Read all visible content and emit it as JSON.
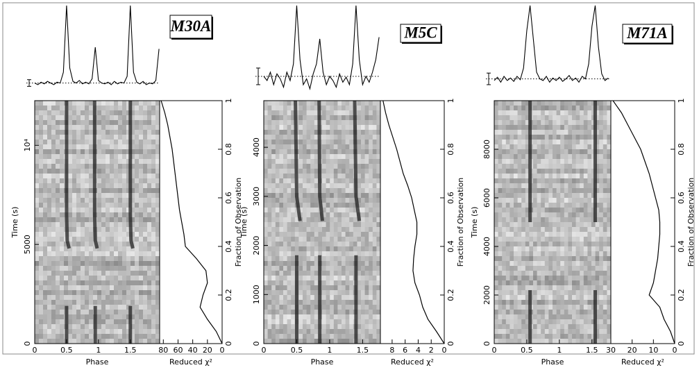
{
  "chart_data": [
    {
      "type": "waterfall",
      "title": "M30A",
      "xlabel": "Phase",
      "ylabel": "Time (s)",
      "xlim": [
        0,
        1.96
      ],
      "xticks": [
        0,
        0.5,
        1,
        1.5
      ],
      "ylim": [
        0,
        12250
      ],
      "yticks": [
        0,
        5000,
        {
          "value": 10000,
          "label": "10⁴"
        }
      ],
      "profile": {
        "x": [
          0,
          0.05,
          0.1,
          0.15,
          0.2,
          0.25,
          0.3,
          0.35,
          0.4,
          0.45,
          0.5,
          0.55,
          0.6,
          0.65,
          0.7,
          0.75,
          0.8,
          0.85,
          0.9,
          0.95,
          1,
          1.05,
          1.1,
          1.15,
          1.2,
          1.25,
          1.3,
          1.35,
          1.4,
          1.45,
          1.5,
          1.55,
          1.6,
          1.65,
          1.7,
          1.75,
          1.8,
          1.85,
          1.9,
          1.95
        ],
        "values": [
          0.07,
          0.05,
          0.08,
          0.06,
          0.09,
          0.07,
          0.05,
          0.08,
          0.07,
          0.2,
          1.0,
          0.25,
          0.09,
          0.07,
          0.1,
          0.06,
          0.08,
          0.06,
          0.12,
          0.5,
          0.1,
          0.07,
          0.06,
          0.08,
          0.05,
          0.09,
          0.06,
          0.08,
          0.07,
          0.15,
          1.0,
          0.2,
          0.08,
          0.06,
          0.09,
          0.05,
          0.07,
          0.06,
          0.1,
          0.48
        ],
        "baseline": 0.07,
        "error": 0.04
      },
      "tracks": [
        {
          "time": [
            0,
            1900
          ],
          "phase": [
            0.5,
            0.5
          ]
        },
        {
          "time": [
            0,
            1900
          ],
          "phase": [
            0.95,
            0.95
          ]
        },
        {
          "time": [
            0,
            1900
          ],
          "phase": [
            1.5,
            1.5
          ]
        },
        {
          "time": [
            4800,
            5200,
            6500,
            12250
          ],
          "phase": [
            0.54,
            0.51,
            0.5,
            0.5
          ]
        },
        {
          "time": [
            4800,
            5200,
            6500,
            12250
          ],
          "phase": [
            0.98,
            0.95,
            0.94,
            0.94
          ]
        },
        {
          "time": [
            4800,
            5200,
            6500,
            12250
          ],
          "phase": [
            1.54,
            1.51,
            1.5,
            1.5
          ]
        }
      ],
      "chi2": {
        "xlabel": "Reduced χ²",
        "ylabel": "Fraction of Observation",
        "xlim": [
          85,
          0
        ],
        "xticks": [
          80,
          60,
          40,
          20,
          0
        ],
        "ylim": [
          0,
          1
        ],
        "yticks": [
          0,
          0.2,
          0.4,
          0.6,
          0.8,
          1
        ],
        "fraction": [
          0,
          0.05,
          0.1,
          0.15,
          0.2,
          0.25,
          0.3,
          0.35,
          0.4,
          0.45,
          0.5,
          0.55,
          0.6,
          0.65,
          0.7,
          0.75,
          0.8,
          0.85,
          0.9,
          0.95,
          1
        ],
        "values": [
          0,
          8,
          20,
          30,
          26,
          20,
          22,
          35,
          50,
          52,
          55,
          58,
          60,
          62,
          64,
          66,
          68,
          71,
          74,
          78,
          83
        ]
      }
    },
    {
      "type": "waterfall",
      "title": "M5C",
      "xlabel": "Phase",
      "ylabel": "Time (s)",
      "xlim": [
        0,
        1.77
      ],
      "xticks": [
        0,
        0.5,
        1,
        1.5
      ],
      "ylim": [
        0,
        4950
      ],
      "yticks": [
        0,
        1000,
        2000,
        3000,
        4000
      ],
      "profile": {
        "x": [
          0,
          0.05,
          0.1,
          0.15,
          0.2,
          0.25,
          0.3,
          0.35,
          0.4,
          0.45,
          0.5,
          0.55,
          0.6,
          0.65,
          0.7,
          0.75,
          0.8,
          0.85,
          0.9,
          0.95,
          1,
          1.05,
          1.1,
          1.15,
          1.2,
          1.25,
          1.3,
          1.35,
          1.4,
          1.45,
          1.5,
          1.55,
          1.6,
          1.65,
          1.7,
          1.75
        ],
        "values": [
          0.15,
          0.1,
          0.2,
          0.05,
          0.18,
          0.12,
          0.02,
          0.2,
          0.1,
          0.3,
          1.0,
          0.35,
          0.05,
          0.12,
          0.0,
          0.18,
          0.3,
          0.6,
          0.2,
          0.05,
          0.15,
          0.1,
          0.02,
          0.18,
          0.08,
          0.14,
          0.05,
          0.3,
          1.0,
          0.35,
          0.05,
          0.15,
          0.08,
          0.2,
          0.35,
          0.62
        ],
        "baseline": 0.15,
        "error": 0.1
      },
      "tracks": [
        {
          "time": [
            0,
            1800
          ],
          "phase": [
            0.5,
            0.5
          ]
        },
        {
          "time": [
            0,
            1800
          ],
          "phase": [
            0.85,
            0.85
          ]
        },
        {
          "time": [
            0,
            1800
          ],
          "phase": [
            1.4,
            1.4
          ]
        },
        {
          "time": [
            2500,
            3000,
            4950
          ],
          "phase": [
            0.55,
            0.5,
            0.48
          ]
        },
        {
          "time": [
            2500,
            3000,
            4950
          ],
          "phase": [
            0.89,
            0.85,
            0.84
          ]
        },
        {
          "time": [
            2500,
            3000,
            4950
          ],
          "phase": [
            1.45,
            1.4,
            1.38
          ]
        }
      ],
      "chi2": {
        "xlabel": "Reduced χ²",
        "ylabel": "Fraction of Observation",
        "xlim": [
          9.8,
          0
        ],
        "xticks": [
          8,
          6,
          4,
          2,
          0
        ],
        "ylim": [
          0,
          1
        ],
        "yticks": [
          0,
          0.2,
          0.4,
          0.6,
          0.8,
          1
        ],
        "fraction": [
          0,
          0.05,
          0.1,
          0.15,
          0.2,
          0.25,
          0.3,
          0.35,
          0.4,
          0.45,
          0.5,
          0.55,
          0.6,
          0.65,
          0.7,
          0.75,
          0.8,
          0.85,
          0.9,
          0.95,
          1
        ],
        "values": [
          0,
          1.2,
          2.5,
          3.3,
          3.8,
          4.5,
          4.8,
          4.7,
          4.5,
          4.2,
          4.2,
          4.6,
          5,
          5.6,
          6.3,
          6.8,
          7.3,
          7.9,
          8.5,
          9,
          9.4
        ]
      }
    },
    {
      "type": "waterfall",
      "title": "M71A",
      "xlabel": "Phase",
      "ylabel": "Time (s)",
      "xlim": [
        0,
        1.79
      ],
      "xticks": [
        0,
        0.5,
        1,
        1.5
      ],
      "ylim": [
        0,
        10000
      ],
      "yticks": [
        0,
        2000,
        4000,
        6000,
        8000
      ],
      "profile": {
        "x": [
          0,
          0.05,
          0.1,
          0.15,
          0.2,
          0.25,
          0.3,
          0.35,
          0.4,
          0.45,
          0.5,
          0.55,
          0.6,
          0.65,
          0.7,
          0.75,
          0.8,
          0.85,
          0.9,
          0.95,
          1,
          1.05,
          1.1,
          1.15,
          1.2,
          1.25,
          1.3,
          1.35,
          1.4,
          1.45,
          1.5,
          1.55,
          1.6,
          1.65,
          1.7,
          1.75
        ],
        "values": [
          0.1,
          0.14,
          0.08,
          0.15,
          0.1,
          0.13,
          0.09,
          0.15,
          0.11,
          0.25,
          0.7,
          1.0,
          0.6,
          0.2,
          0.12,
          0.1,
          0.15,
          0.08,
          0.13,
          0.1,
          0.14,
          0.09,
          0.12,
          0.16,
          0.1,
          0.13,
          0.08,
          0.15,
          0.12,
          0.3,
          0.75,
          1.0,
          0.5,
          0.18,
          0.1,
          0.13
        ],
        "baseline": 0.12,
        "error": 0.07
      },
      "tracks": [
        {
          "time": [
            0,
            2200
          ],
          "phase": [
            0.55,
            0.55
          ]
        },
        {
          "time": [
            0,
            2200
          ],
          "phase": [
            1.55,
            1.55
          ]
        },
        {
          "time": [
            5000,
            10000
          ],
          "phase": [
            0.55,
            0.55
          ]
        },
        {
          "time": [
            5000,
            10000
          ],
          "phase": [
            1.55,
            1.55
          ]
        }
      ],
      "chi2": {
        "xlabel": "Reduced χ²",
        "ylabel": "Fraction of Observation",
        "xlim": [
          30,
          0
        ],
        "xticks": [
          30,
          20,
          10,
          0
        ],
        "ylim": [
          0,
          1
        ],
        "yticks": [
          0,
          0.2,
          0.4,
          0.6,
          0.8,
          1
        ],
        "fraction": [
          0,
          0.05,
          0.1,
          0.15,
          0.2,
          0.25,
          0.3,
          0.35,
          0.4,
          0.45,
          0.5,
          0.55,
          0.6,
          0.65,
          0.7,
          0.75,
          0.8,
          0.85,
          0.9,
          0.95,
          1
        ],
        "values": [
          0,
          2,
          5,
          7,
          12,
          10,
          9,
          8,
          7.5,
          7,
          7,
          7.5,
          9,
          10.5,
          12,
          14,
          16,
          19,
          22,
          25,
          29
        ]
      }
    }
  ]
}
